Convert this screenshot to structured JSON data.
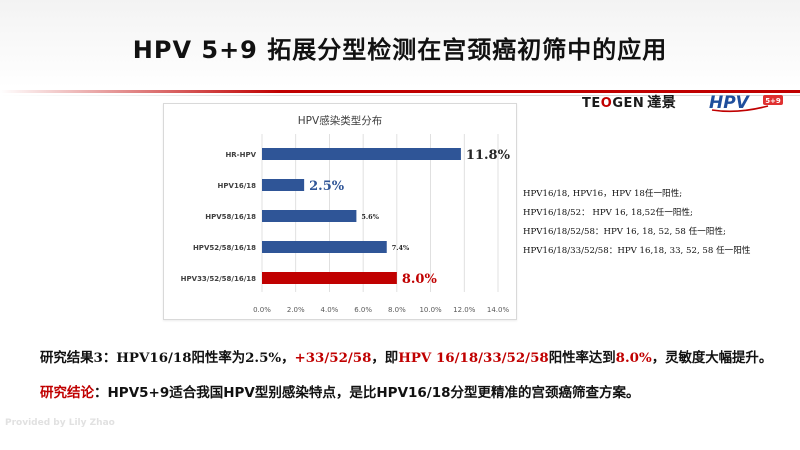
{
  "slide": {
    "title": "HPV 5+9 拓展分型检测在宫颈癌初筛中的应用",
    "accent_color": "#c00000"
  },
  "logos": {
    "teogen_prefix": "TE",
    "teogen_mid": "O",
    "teogen_suffix": "GEN",
    "teogen_chinese": "達景",
    "hpv_logo_text": "HPV",
    "hpv_logo_badge": "5+9"
  },
  "chart_data": {
    "type": "bar",
    "orientation": "horizontal",
    "title": "HPV感染类型分布",
    "categories": [
      "HR-HPV",
      "HPV16/18",
      "HPV58/16/18",
      "HPV52/58/16/18",
      "HPV33/52/58/16/18"
    ],
    "values": [
      11.8,
      2.5,
      5.6,
      7.4,
      8.0
    ],
    "data_labels": [
      "11.8%",
      "2.5%",
      "5.6%",
      "7.4%",
      "8.0%"
    ],
    "bar_colors": [
      "#2f5597",
      "#2f5597",
      "#2f5597",
      "#2f5597",
      "#c00000"
    ],
    "xlim": [
      0,
      14
    ],
    "x_ticks": [
      "0.0%",
      "2.0%",
      "4.0%",
      "6.0%",
      "8.0%",
      "10.0%",
      "12.0%",
      "14.0%"
    ],
    "grid": true
  },
  "side_notes": [
    "HPV16/18, HPV16，HPV 18任一阳性;",
    "HPV16/18/52：  HPV 16, 18,52任一阳性;",
    "HPV16/18/52/58：HPV 16, 18, 52, 58 任一阳性;",
    "HPV16/18/33/52/58：HPV 16,18, 33, 52, 58 任一阳性"
  ],
  "result": {
    "p1": "研究结果3：HPV16/18阳性率为2.5%，",
    "p2": "+33/52/58",
    "p3": "，即",
    "p4": "HPV 16/18/33/52/58",
    "p5": "阳性率达到",
    "p6": "8.0%",
    "p7": "，灵敏度大幅提升。"
  },
  "conclusion": {
    "label": "研究结论",
    "text": "：HPV5+9适合我国HPV型别感染特点，是比HPV16/18分型更精准的宫颈癌筛查方案。"
  },
  "watermark": "Provided by Lily Zhao"
}
